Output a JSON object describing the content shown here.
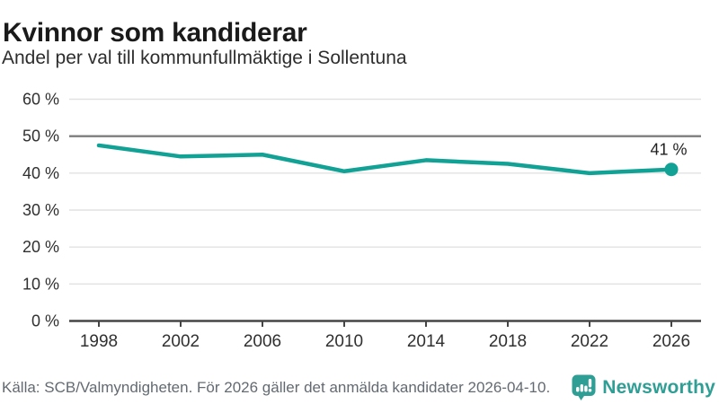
{
  "header": {
    "title": "Kvinnor som kandiderar",
    "subtitle": "Andel per val till kommunfullmäktige i Sollentuna"
  },
  "chart_data": {
    "type": "line",
    "title": "Kvinnor som kandiderar",
    "subtitle": "Andel per val till kommunfullmäktige i Sollentuna",
    "x": [
      1998,
      2002,
      2006,
      2010,
      2014,
      2018,
      2022,
      2026
    ],
    "values": [
      47.5,
      44.5,
      45,
      40.5,
      43.5,
      42.5,
      40,
      41
    ],
    "unit": "%",
    "xlabel": "",
    "ylabel": "",
    "ylim": [
      0,
      60
    ],
    "ytick_step": 10,
    "ytick_suffix": " %",
    "emphasized_gridline": 50,
    "last_point_label": "41 %",
    "grid": true,
    "legend_position": "none",
    "colors": {
      "line": "#12a195",
      "marker": "#12a195",
      "grid_light": "#e2e2e2",
      "grid_emphasis": "#7d7d7d",
      "axis": "#454545",
      "tick_label": "#303030",
      "annotation": "#1f1f1f"
    }
  },
  "footer": {
    "source": "Källa: SCB/Valmyndigheten. För 2026 gäller det anmälda kandidater 2026-04-10.",
    "brand": "Newsworthy",
    "brand_color": "#2f9e94",
    "logo_icon": "speech-bubble-bar-chart-exclamation"
  }
}
